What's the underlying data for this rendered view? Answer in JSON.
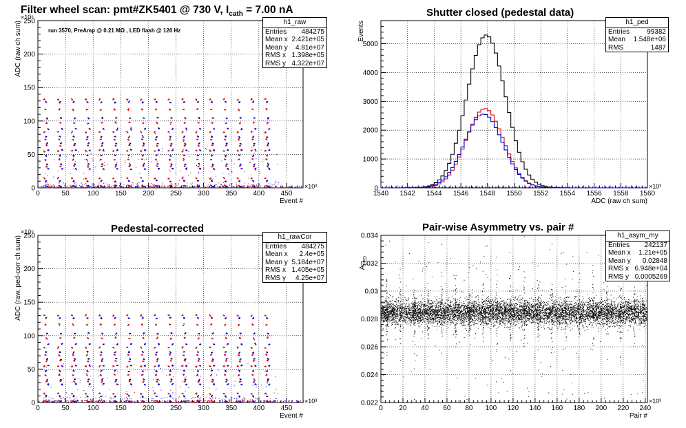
{
  "colors": {
    "red": "#e00000",
    "blue": "#0000cc",
    "black": "#000000"
  },
  "panels": {
    "raw": {
      "title_main": "Filter wheel scan: pmt#ZK5401 @   730 V, I",
      "title_sub": "cath",
      "title_tail": " = 7.00 nA",
      "note": "run 3570, PreAmp @ 0.21 MΩ , LED flash @  120 Hz",
      "stats": {
        "name": "h1_raw",
        "rows": [
          [
            "Entries",
            "484275"
          ],
          [
            "Mean x",
            "2.421e+05"
          ],
          [
            "Mean y",
            "4.81e+07"
          ],
          [
            "RMS x",
            "1.398e+05"
          ],
          [
            "RMS y",
            "4.322e+07"
          ]
        ]
      }
    },
    "ped": {
      "title": "Shutter closed (pedestal data)",
      "stats": {
        "name": "h1_ped",
        "rows": [
          [
            "Entries",
            "99382"
          ],
          [
            "Mean",
            "1.548e+06"
          ],
          [
            "RMS",
            "1487"
          ]
        ]
      }
    },
    "cor": {
      "title": "Pedestal-corrected",
      "stats": {
        "name": "h1_rawCor",
        "rows": [
          [
            "Entries",
            "484275"
          ],
          [
            "Mean x",
            "2.4e+05"
          ],
          [
            "Mean y",
            "5.184e+07"
          ],
          [
            "RMS x",
            "1.405e+05"
          ],
          [
            "RMS y",
            "4.25e+07"
          ]
        ]
      }
    },
    "asym": {
      "title": "Pair-wise Asymmetry vs. pair #",
      "stats": {
        "name": "h1_asym_my",
        "rows": [
          [
            "Entries",
            "242137"
          ],
          [
            "Mean x",
            "1.21e+05"
          ],
          [
            "Mean y",
            "0.02848"
          ],
          [
            "RMS x",
            "6.948e+04"
          ],
          [
            "RMS y",
            "0.0005269"
          ]
        ]
      }
    }
  },
  "chart_data": [
    {
      "type": "scatter",
      "name": "h1_raw",
      "xlabel": "Event #",
      "ylabel": "ADC (raw ch sum)",
      "x_exponent": "×10³",
      "y_exponent": "×10⁶",
      "xlim": [
        0,
        480
      ],
      "ylim": [
        0,
        250
      ],
      "xticks": [
        "0",
        "50",
        "100",
        "150",
        "200",
        "250",
        "300",
        "350",
        "400",
        "450"
      ],
      "yticks": [
        "0",
        "50",
        "100",
        "150",
        "200",
        "250"
      ],
      "grid": true,
      "level_groups": [
        {
          "red": 132,
          "blue": 128
        },
        {
          "red": 117,
          "blue": 104
        },
        {
          "red": 97,
          "blue": 88
        },
        {
          "red": 83,
          "blue": 76
        },
        {
          "red": 72,
          "blue": 66
        },
        {
          "red": 63,
          "blue": 56
        },
        {
          "red": 55,
          "blue": 48
        },
        {
          "red": 42,
          "blue": 35
        },
        {
          "red": 32,
          "blue": 28
        },
        {
          "red": 14,
          "blue": 10
        },
        {
          "red": 3,
          "blue": 2
        }
      ],
      "cycle_start": 10,
      "cycle_period": 25,
      "cycles": 17
    },
    {
      "type": "bar",
      "name": "h1_ped",
      "xlabel": "ADC (raw ch sum)",
      "ylabel": "Events",
      "x_exponent": "×10³",
      "xlim": [
        1540,
        1560
      ],
      "ylim": [
        0,
        5800
      ],
      "xticks": [
        "1540",
        "1542",
        "1544",
        "1546",
        "1548",
        "1550",
        "1552",
        "1554",
        "1556",
        "1558",
        "1560"
      ],
      "yticks": [
        "0",
        "1000",
        "2000",
        "3000",
        "4000",
        "5000"
      ],
      "grid": true,
      "bin_width": 0.25,
      "bin_start": 1540,
      "series": [
        {
          "name": "black",
          "mean": 1547.9,
          "sigma": 1.45,
          "peak": 5300
        },
        {
          "name": "red",
          "mean": 1547.8,
          "sigma": 1.4,
          "peak": 2750
        },
        {
          "name": "blue",
          "mean": 1547.7,
          "sigma": 1.45,
          "peak": 2560
        }
      ]
    },
    {
      "type": "scatter",
      "name": "h1_rawCor",
      "xlabel": "Event #",
      "ylabel": "ADC (raw, ped-corr ch sum)",
      "x_exponent": "×10³",
      "y_exponent": "×10⁶",
      "xlim": [
        0,
        480
      ],
      "ylim": [
        0,
        250
      ],
      "xticks": [
        "0",
        "50",
        "100",
        "150",
        "200",
        "250",
        "300",
        "350",
        "400",
        "450"
      ],
      "yticks": [
        "0",
        "50",
        "100",
        "150",
        "200",
        "250"
      ],
      "grid": true,
      "level_groups": [
        {
          "red": 130,
          "blue": 126
        },
        {
          "red": 116,
          "blue": 103
        },
        {
          "red": 96,
          "blue": 87
        },
        {
          "red": 82,
          "blue": 75
        },
        {
          "red": 71,
          "blue": 65
        },
        {
          "red": 62,
          "blue": 55
        },
        {
          "red": 54,
          "blue": 47
        },
        {
          "red": 41,
          "blue": 34
        },
        {
          "red": 31,
          "blue": 27
        },
        {
          "red": 13,
          "blue": 9
        },
        {
          "red": 2,
          "blue": 1
        }
      ],
      "cycle_start": 10,
      "cycle_period": 25,
      "cycles": 17
    },
    {
      "type": "scatter",
      "name": "h1_asym_my",
      "xlabel": "Pair #",
      "ylabel": "A_LED",
      "ylabel_main": "A",
      "ylabel_sub": "LED",
      "x_exponent": "×10³",
      "xlim": [
        0,
        242
      ],
      "ylim": [
        0.022,
        0.034
      ],
      "xticks": [
        "0",
        "20",
        "40",
        "60",
        "80",
        "100",
        "120",
        "140",
        "160",
        "180",
        "200",
        "220",
        "240"
      ],
      "yticks": [
        "0.022",
        "0.024",
        "0.026",
        "0.028",
        "0.03",
        "0.032",
        "0.034"
      ],
      "grid": true,
      "band_center": 0.02848,
      "band_halfwidth": 0.0008,
      "spike_start": 5,
      "spike_period": 12.5
    }
  ]
}
